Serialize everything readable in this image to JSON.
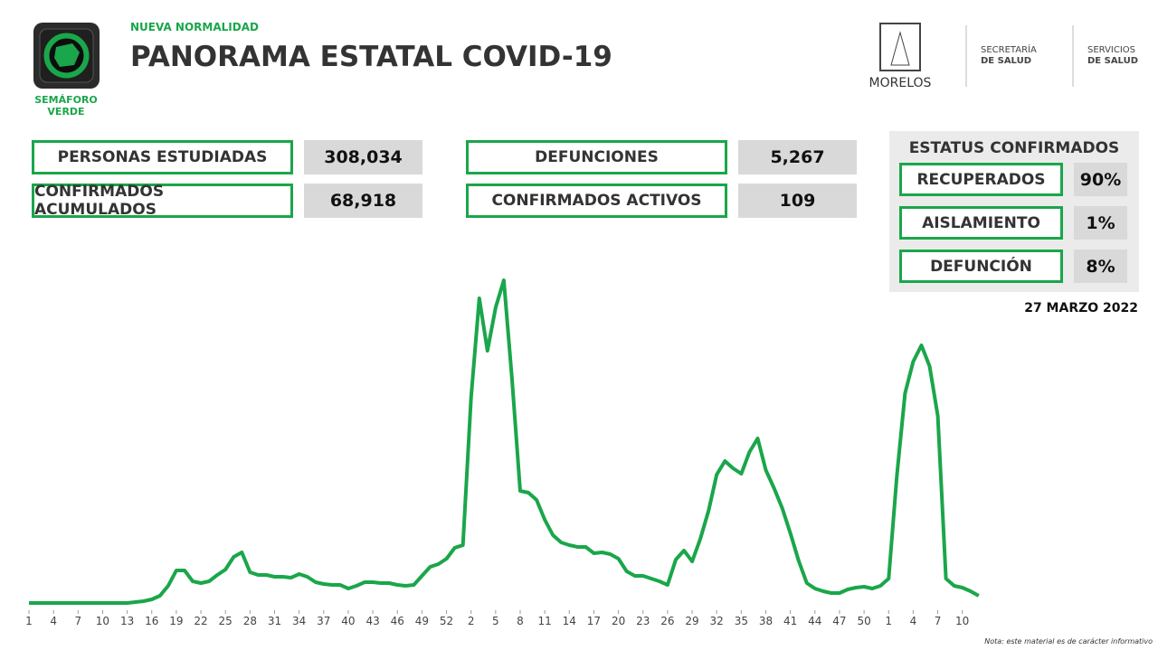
{
  "header": {
    "badge_title": "NUEVA NORMALIDAD",
    "title": "PANORAMA ESTATAL COVID-19",
    "semaforo": [
      "SEMÁFORO",
      "VERDE"
    ]
  },
  "logos": {
    "state": "MORELOS",
    "secretaria": [
      "SECRETARÍA",
      "DE SALUD"
    ],
    "servicios": [
      "SERVICIOS",
      "DE SALUD"
    ]
  },
  "stats": [
    {
      "label": "PERSONAS ESTUDIADAS",
      "value": "308,034"
    },
    {
      "label": "CONFIRMADOS ACUMULADOS",
      "value": "68,918"
    },
    {
      "label": "DEFUNCIONES",
      "value": "5,267"
    },
    {
      "label": "CONFIRMADOS ACTIVOS",
      "value": "109"
    }
  ],
  "status": {
    "title": "ESTATUS CONFIRMADOS",
    "items": [
      {
        "label": "RECUPERADOS",
        "value": "90%"
      },
      {
        "label": "AISLAMIENTO",
        "value": "1%"
      },
      {
        "label": "DEFUNCIÓN",
        "value": "8%"
      }
    ]
  },
  "date": "27 MARZO 2022",
  "note": "Nota: este material es de carácter informativo",
  "chart_data": {
    "type": "line",
    "color": "#1aa64a",
    "ylim": [
      0,
      360
    ],
    "categories": [
      "1",
      null,
      null,
      "4",
      null,
      null,
      "7",
      null,
      null,
      "10",
      null,
      null,
      "13",
      null,
      null,
      "16",
      null,
      null,
      "19",
      null,
      null,
      "22",
      null,
      null,
      "25",
      null,
      null,
      "28",
      null,
      null,
      "31",
      null,
      null,
      "34",
      null,
      null,
      "37",
      null,
      null,
      "40",
      null,
      null,
      "43",
      null,
      null,
      "46",
      null,
      null,
      "49",
      null,
      null,
      "52",
      null,
      null,
      "2",
      null,
      null,
      "5",
      null,
      null,
      "8",
      null,
      null,
      "11",
      null,
      null,
      "14",
      null,
      null,
      "17",
      null,
      null,
      "20",
      null,
      null,
      "23",
      null,
      null,
      "26",
      null,
      null,
      "29",
      null,
      null,
      "32",
      null,
      null,
      "35",
      null,
      null,
      "38",
      null,
      null,
      "41",
      null,
      null,
      "44",
      null,
      null,
      "47",
      null,
      null,
      "50",
      null,
      null,
      "1",
      null,
      null,
      "4",
      null,
      null,
      "7",
      null,
      null,
      "10",
      null,
      null
    ],
    "values": [
      0,
      0,
      0,
      0,
      0,
      0,
      0,
      0,
      0,
      0,
      0,
      0,
      0,
      1,
      2,
      4,
      8,
      19,
      36,
      36,
      24,
      22,
      24,
      31,
      37,
      51,
      56,
      34,
      31,
      31,
      29,
      29,
      28,
      32,
      29,
      23,
      21,
      20,
      20,
      16,
      19,
      23,
      23,
      22,
      22,
      20,
      19,
      20,
      30,
      40,
      43,
      49,
      61,
      64,
      227,
      337,
      279,
      327,
      357,
      247,
      124,
      122,
      114,
      92,
      75,
      67,
      64,
      62,
      62,
      55,
      56,
      54,
      49,
      35,
      30,
      30,
      27,
      24,
      20,
      48,
      58,
      46,
      71,
      102,
      142,
      157,
      149,
      143,
      167,
      182,
      147,
      127,
      105,
      77,
      47,
      22,
      16,
      13,
      11,
      11,
      15,
      17,
      18,
      16,
      19,
      27,
      140,
      232,
      267,
      285,
      262,
      207,
      27,
      19,
      17,
      13,
      8
    ]
  }
}
